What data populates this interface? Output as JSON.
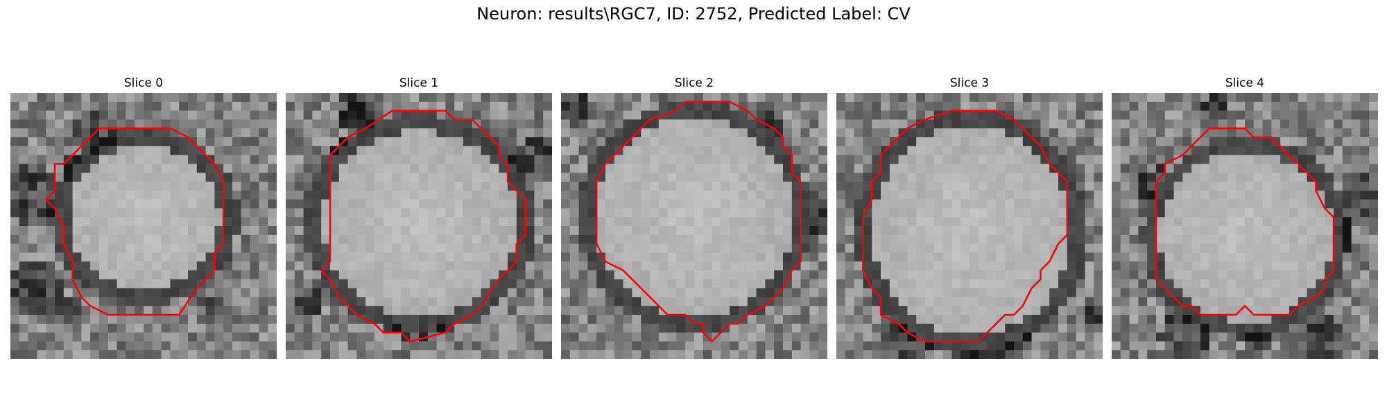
{
  "figure": {
    "title": "Neuron: results\\RGC7, ID: 2752, Predicted Label: CV"
  },
  "panels": [
    {
      "title": "Slice 0"
    },
    {
      "title": "Slice 1"
    },
    {
      "title": "Slice 2"
    },
    {
      "title": "Slice 3"
    },
    {
      "title": "Slice 4"
    }
  ],
  "colors": {
    "contour": "#ff0000",
    "background": "#ffffff"
  }
}
